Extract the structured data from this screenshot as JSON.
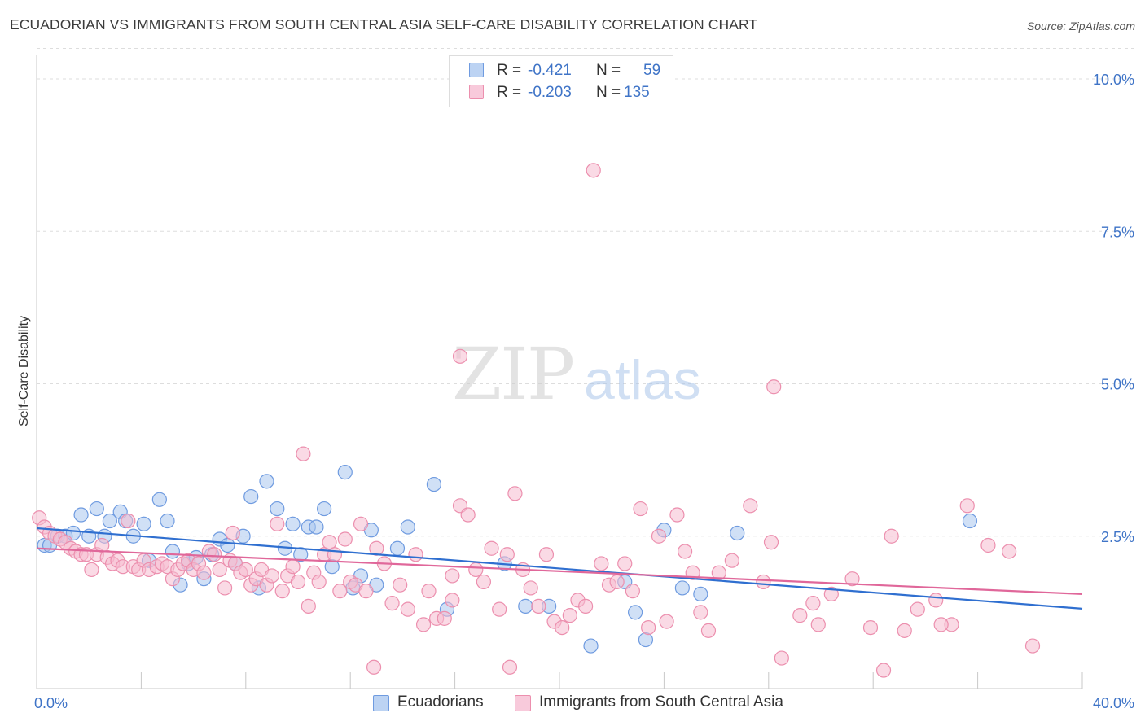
{
  "header": {
    "title": "ECUADORIAN VS IMMIGRANTS FROM SOUTH CENTRAL ASIA SELF-CARE DISABILITY CORRELATION CHART",
    "source": "Source: ZipAtlas.com"
  },
  "legend_box": {
    "rows": [
      {
        "r_label": "R =",
        "r_value": "-0.421",
        "n_label": "N =",
        "n_value": "59"
      },
      {
        "r_label": "R =",
        "r_value": "-0.203",
        "n_label": "N =",
        "n_value": "135"
      }
    ]
  },
  "watermark": {
    "part1": "ZIP",
    "part2": "atlas"
  },
  "bottom_legend": {
    "series1": "Ecuadorians",
    "series2": "Immigrants from South Central Asia"
  },
  "colors": {
    "blue_fill": "#a9c6ee",
    "blue_stroke": "#6f9be0",
    "blue_line": "#2f6fd0",
    "pink_fill": "#f6bccf",
    "pink_stroke": "#ec8fae",
    "pink_line": "#e0679a",
    "axis_text": "#3f74c7",
    "grid": "#dddddd"
  },
  "chart_data": {
    "type": "scatter",
    "title": "ECUADORIAN VS IMMIGRANTS FROM SOUTH CENTRAL ASIA SELF-CARE DISABILITY CORRELATION CHART",
    "xlabel": "",
    "ylabel": "Self-Care Disability",
    "xlim": [
      0,
      40
    ],
    "ylim": [
      0,
      10.5
    ],
    "x_tick_labels": [
      "0.0%",
      "40.0%"
    ],
    "y_ticks": [
      2.5,
      5.0,
      7.5,
      10.0
    ],
    "y_tick_labels": [
      "2.5%",
      "5.0%",
      "7.5%",
      "10.0%"
    ],
    "grid": true,
    "legend_position": "top-center",
    "series": [
      {
        "name": "Ecuadorians",
        "r": -0.421,
        "n": 59,
        "trend": {
          "x": [
            0,
            40
          ],
          "y": [
            2.63,
            1.31
          ]
        },
        "points": [
          [
            0.3,
            2.35
          ],
          [
            0.5,
            2.35
          ],
          [
            0.8,
            2.5
          ],
          [
            1.1,
            2.5
          ],
          [
            1.4,
            2.55
          ],
          [
            1.7,
            2.85
          ],
          [
            2.0,
            2.5
          ],
          [
            2.3,
            2.95
          ],
          [
            2.6,
            2.5
          ],
          [
            2.8,
            2.75
          ],
          [
            3.2,
            2.9
          ],
          [
            3.4,
            2.75
          ],
          [
            3.7,
            2.5
          ],
          [
            4.1,
            2.7
          ],
          [
            4.3,
            2.1
          ],
          [
            4.7,
            3.1
          ],
          [
            5.0,
            2.75
          ],
          [
            5.2,
            2.25
          ],
          [
            5.5,
            1.7
          ],
          [
            5.8,
            2.05
          ],
          [
            6.1,
            2.15
          ],
          [
            6.4,
            1.8
          ],
          [
            6.7,
            2.2
          ],
          [
            7.0,
            2.45
          ],
          [
            7.3,
            2.35
          ],
          [
            7.6,
            2.05
          ],
          [
            7.9,
            2.5
          ],
          [
            8.2,
            3.15
          ],
          [
            8.5,
            1.65
          ],
          [
            8.8,
            3.4
          ],
          [
            9.2,
            2.95
          ],
          [
            9.5,
            2.3
          ],
          [
            9.8,
            2.7
          ],
          [
            10.1,
            2.2
          ],
          [
            10.4,
            2.65
          ],
          [
            10.7,
            2.65
          ],
          [
            11.0,
            2.95
          ],
          [
            11.3,
            2.0
          ],
          [
            11.8,
            3.55
          ],
          [
            12.1,
            1.65
          ],
          [
            12.4,
            1.85
          ],
          [
            12.8,
            2.6
          ],
          [
            13.0,
            1.7
          ],
          [
            13.8,
            2.3
          ],
          [
            14.2,
            2.65
          ],
          [
            15.2,
            3.35
          ],
          [
            15.7,
            1.3
          ],
          [
            17.9,
            2.05
          ],
          [
            18.7,
            1.35
          ],
          [
            19.6,
            1.35
          ],
          [
            21.2,
            0.7
          ],
          [
            22.5,
            1.75
          ],
          [
            22.9,
            1.25
          ],
          [
            23.3,
            0.8
          ],
          [
            24.0,
            2.6
          ],
          [
            24.7,
            1.65
          ],
          [
            25.4,
            1.55
          ],
          [
            26.8,
            2.55
          ],
          [
            35.7,
            2.75
          ]
        ]
      },
      {
        "name": "Immigrants from South Central Asia",
        "r": -0.203,
        "n": 135,
        "trend": {
          "x": [
            0,
            40
          ],
          "y": [
            2.3,
            1.55
          ]
        },
        "points": [
          [
            0.1,
            2.8
          ],
          [
            0.3,
            2.65
          ],
          [
            0.5,
            2.55
          ],
          [
            0.7,
            2.5
          ],
          [
            0.9,
            2.45
          ],
          [
            1.1,
            2.4
          ],
          [
            1.3,
            2.3
          ],
          [
            1.5,
            2.25
          ],
          [
            1.7,
            2.2
          ],
          [
            1.9,
            2.2
          ],
          [
            2.1,
            1.95
          ],
          [
            2.3,
            2.2
          ],
          [
            2.5,
            2.35
          ],
          [
            2.7,
            2.15
          ],
          [
            2.9,
            2.05
          ],
          [
            3.1,
            2.1
          ],
          [
            3.3,
            2.0
          ],
          [
            3.5,
            2.75
          ],
          [
            3.7,
            2.0
          ],
          [
            3.9,
            1.95
          ],
          [
            4.1,
            2.1
          ],
          [
            4.3,
            1.95
          ],
          [
            4.6,
            2.0
          ],
          [
            4.8,
            2.05
          ],
          [
            5.0,
            2.0
          ],
          [
            5.2,
            1.8
          ],
          [
            5.4,
            1.95
          ],
          [
            5.6,
            2.05
          ],
          [
            5.8,
            2.1
          ],
          [
            6.0,
            1.95
          ],
          [
            6.2,
            2.05
          ],
          [
            6.4,
            1.9
          ],
          [
            6.6,
            2.25
          ],
          [
            6.8,
            2.2
          ],
          [
            7.0,
            1.95
          ],
          [
            7.2,
            1.65
          ],
          [
            7.4,
            2.1
          ],
          [
            7.6,
            2.05
          ],
          [
            7.8,
            1.9
          ],
          [
            8.0,
            1.95
          ],
          [
            8.2,
            1.7
          ],
          [
            8.4,
            1.8
          ],
          [
            8.6,
            1.95
          ],
          [
            8.8,
            1.7
          ],
          [
            9.0,
            1.85
          ],
          [
            9.2,
            2.7
          ],
          [
            9.4,
            1.6
          ],
          [
            9.6,
            1.85
          ],
          [
            9.8,
            2.0
          ],
          [
            10.0,
            1.75
          ],
          [
            10.2,
            3.85
          ],
          [
            10.4,
            1.35
          ],
          [
            10.6,
            1.9
          ],
          [
            10.8,
            1.75
          ],
          [
            11.0,
            2.2
          ],
          [
            11.2,
            2.4
          ],
          [
            11.4,
            2.2
          ],
          [
            11.6,
            1.6
          ],
          [
            11.8,
            2.45
          ],
          [
            12.0,
            1.75
          ],
          [
            12.2,
            1.7
          ],
          [
            12.4,
            2.7
          ],
          [
            12.6,
            1.6
          ],
          [
            13.0,
            2.3
          ],
          [
            13.3,
            2.05
          ],
          [
            13.6,
            1.4
          ],
          [
            13.9,
            1.7
          ],
          [
            14.2,
            1.3
          ],
          [
            14.5,
            2.2
          ],
          [
            14.8,
            1.05
          ],
          [
            15.0,
            1.6
          ],
          [
            15.3,
            1.15
          ],
          [
            15.6,
            1.15
          ],
          [
            15.9,
            1.45
          ],
          [
            16.2,
            3.0
          ],
          [
            16.5,
            2.85
          ],
          [
            16.8,
            1.95
          ],
          [
            17.1,
            1.75
          ],
          [
            17.4,
            2.3
          ],
          [
            17.7,
            1.3
          ],
          [
            18.0,
            2.2
          ],
          [
            18.3,
            3.2
          ],
          [
            18.6,
            1.95
          ],
          [
            18.9,
            1.65
          ],
          [
            19.2,
            1.35
          ],
          [
            19.5,
            2.2
          ],
          [
            19.8,
            1.1
          ],
          [
            20.1,
            1.0
          ],
          [
            20.4,
            1.2
          ],
          [
            20.7,
            1.45
          ],
          [
            21.0,
            1.35
          ],
          [
            21.3,
            8.5
          ],
          [
            21.6,
            2.05
          ],
          [
            21.9,
            1.7
          ],
          [
            22.2,
            1.75
          ],
          [
            22.5,
            2.05
          ],
          [
            22.8,
            1.6
          ],
          [
            23.1,
            2.95
          ],
          [
            23.4,
            1.0
          ],
          [
            23.8,
            2.5
          ],
          [
            24.1,
            1.1
          ],
          [
            24.5,
            2.85
          ],
          [
            24.8,
            2.25
          ],
          [
            25.1,
            1.9
          ],
          [
            25.4,
            1.25
          ],
          [
            25.7,
            0.95
          ],
          [
            26.1,
            1.9
          ],
          [
            26.6,
            2.1
          ],
          [
            27.3,
            3.0
          ],
          [
            27.8,
            1.75
          ],
          [
            28.1,
            2.4
          ],
          [
            28.5,
            0.5
          ],
          [
            29.2,
            1.2
          ],
          [
            29.7,
            1.4
          ],
          [
            30.4,
            1.55
          ],
          [
            31.2,
            1.8
          ],
          [
            31.9,
            1.0
          ],
          [
            32.4,
            0.3
          ],
          [
            33.2,
            0.95
          ],
          [
            33.7,
            1.3
          ],
          [
            34.4,
            1.45
          ],
          [
            35.0,
            1.05
          ],
          [
            35.6,
            3.0
          ],
          [
            36.4,
            2.35
          ],
          [
            37.2,
            2.25
          ],
          [
            38.1,
            0.7
          ],
          [
            16.2,
            5.45
          ],
          [
            28.2,
            4.95
          ],
          [
            15.9,
            1.85
          ],
          [
            34.6,
            1.05
          ],
          [
            32.7,
            2.5
          ],
          [
            7.5,
            2.55
          ],
          [
            12.9,
            0.35
          ],
          [
            18.1,
            0.35
          ],
          [
            29.9,
            1.05
          ]
        ]
      }
    ]
  }
}
